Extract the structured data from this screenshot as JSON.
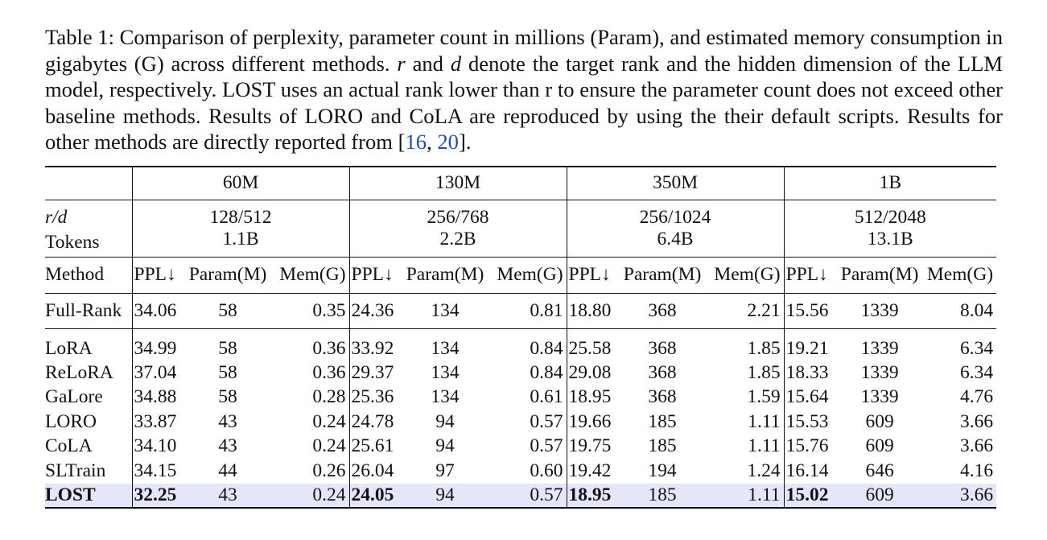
{
  "caption": {
    "prefix": "Table 1: Comparison of perplexity, parameter count in millions (Param), and estimated memory consumption in gigabytes (G) across different methods. ",
    "r_var": "r",
    "and_text": " and ",
    "d_var": "d",
    "middle": " denote the target rank and the hidden dimension of the LLM model, respectively. LOST uses an actual rank lower than r to ensure the parameter count does not exceed other baseline methods. Results of LORO and CoLA are reproduced by using the their default scripts. Results for other methods are directly reported from [",
    "ref1": "16",
    "ref_sep": ", ",
    "ref2": "20",
    "suffix": "]."
  },
  "table": {
    "model_sizes": [
      "60M",
      "130M",
      "350M",
      "1B"
    ],
    "rd_label": "r/d",
    "rd_values": [
      "128/512",
      "256/768",
      "256/1024",
      "512/2048"
    ],
    "tokens_label": "Tokens",
    "tokens_values": [
      "1.1B",
      "2.2B",
      "6.4B",
      "13.1B"
    ],
    "method_header": "Method",
    "metric_headers": [
      "PPL↓",
      "Param(M)",
      "Mem(G)"
    ],
    "full_rank": {
      "method": "Full-Rank",
      "values": [
        "34.06",
        "58",
        "0.35",
        "24.36",
        "134",
        "0.81",
        "18.80",
        "368",
        "2.21",
        "15.56",
        "1339",
        "8.04"
      ]
    },
    "rows": [
      {
        "method": "LoRA",
        "values": [
          "34.99",
          "58",
          "0.36",
          "33.92",
          "134",
          "0.84",
          "25.58",
          "368",
          "1.85",
          "19.21",
          "1339",
          "6.34"
        ]
      },
      {
        "method": "ReLoRA",
        "values": [
          "37.04",
          "58",
          "0.36",
          "29.37",
          "134",
          "0.84",
          "29.08",
          "368",
          "1.85",
          "18.33",
          "1339",
          "6.34"
        ]
      },
      {
        "method": "GaLore",
        "values": [
          "34.88",
          "58",
          "0.28",
          "25.36",
          "134",
          "0.61",
          "18.95",
          "368",
          "1.59",
          "15.64",
          "1339",
          "4.76"
        ]
      },
      {
        "method": "LORO",
        "values": [
          "33.87",
          "43",
          "0.24",
          "24.78",
          "94",
          "0.57",
          "19.66",
          "185",
          "1.11",
          "15.53",
          "609",
          "3.66"
        ]
      },
      {
        "method": "CoLA",
        "values": [
          "34.10",
          "43",
          "0.24",
          "25.61",
          "94",
          "0.57",
          "19.75",
          "185",
          "1.11",
          "15.76",
          "609",
          "3.66"
        ]
      },
      {
        "method": "SLTrain",
        "values": [
          "34.15",
          "44",
          "0.26",
          "26.04",
          "97",
          "0.60",
          "19.42",
          "194",
          "1.24",
          "16.14",
          "646",
          "4.16"
        ]
      }
    ],
    "highlight_row": {
      "method": "LOST",
      "values": [
        "32.25",
        "43",
        "0.24",
        "24.05",
        "94",
        "0.57",
        "18.95",
        "185",
        "1.11",
        "15.02",
        "609",
        "3.66"
      ],
      "highlight_color": "#e6e6fa"
    }
  }
}
